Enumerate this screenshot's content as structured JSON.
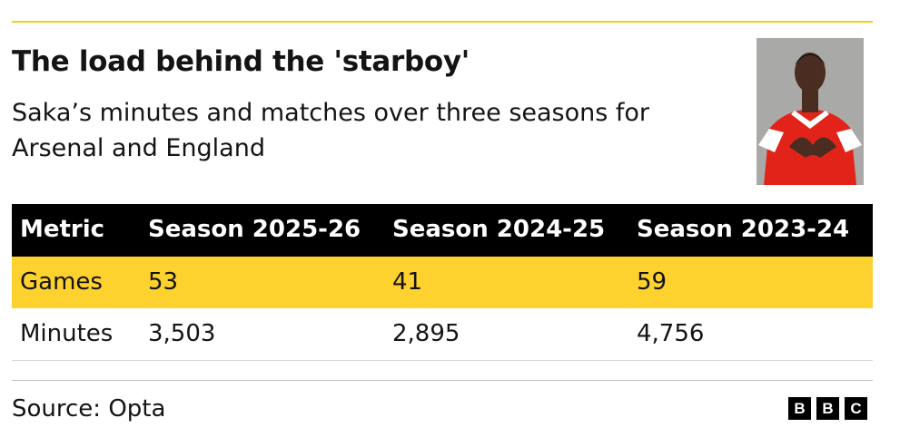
{
  "header": {
    "title": "The load behind the 'starboy'",
    "subtitle": "Saka’s minutes and matches over three seasons for Arsenal and England"
  },
  "table": {
    "columns": [
      "Metric",
      "Season 2025-26",
      "Season 2024-25",
      "Season 2023-24"
    ],
    "rows": [
      [
        "Games",
        "53",
        "41",
        "59"
      ],
      [
        "Minutes",
        "3,503",
        "2,895",
        "4,756"
      ]
    ]
  },
  "footer": {
    "source": "Source: Opta",
    "logo": [
      "B",
      "B",
      "C"
    ]
  }
}
